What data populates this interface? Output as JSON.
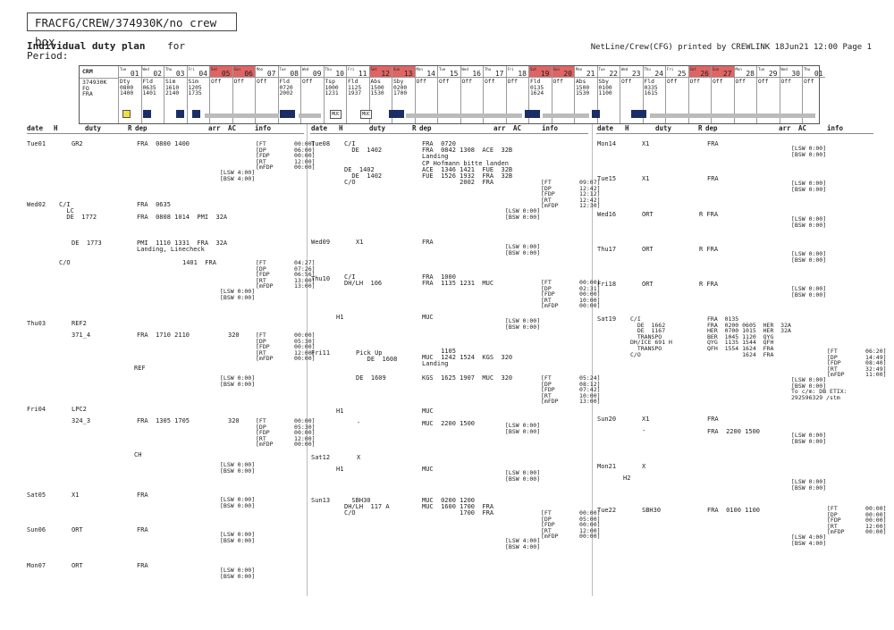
{
  "title_box": "FRACFG/CREW/374930K/no crew box",
  "header": {
    "title": "Individual duty plan",
    "for": "for",
    "period": "Period:",
    "right": "NetLine/Crew(CFG)  printed by CREWLINK  18Jun21 12:00 Page 1"
  },
  "calendar": {
    "crm_label": "CRM",
    "crm_lines": "374930K\nFO\nFRA",
    "days": [
      {
        "dn": "Tue",
        "dd": "01",
        "red": false,
        "body": "Dty\n0800\n1400"
      },
      {
        "dn": "Wed",
        "dd": "02",
        "red": false,
        "body": "Fld\n0635\n1401"
      },
      {
        "dn": "Thu",
        "dd": "03",
        "red": false,
        "body": "Sim\n1610\n2140"
      },
      {
        "dn": "Fri",
        "dd": "04",
        "red": false,
        "body": "Sim\n1205\n1735"
      },
      {
        "dn": "Sat",
        "dd": "05",
        "red": true,
        "body": "Off"
      },
      {
        "dn": "Sun",
        "dd": "06",
        "red": true,
        "body": "Off"
      },
      {
        "dn": "Mon",
        "dd": "07",
        "red": false,
        "body": "Off"
      },
      {
        "dn": "Tue",
        "dd": "08",
        "red": false,
        "body": "Fld\n0720\n2002"
      },
      {
        "dn": "Wed",
        "dd": "09",
        "red": false,
        "body": "Off"
      },
      {
        "dn": "Thu",
        "dd": "10",
        "red": false,
        "body": "Tsp\n1000\n1231"
      },
      {
        "dn": "Fri",
        "dd": "11",
        "red": false,
        "body": "Fld\n1125\n1937"
      },
      {
        "dn": "Sat",
        "dd": "12",
        "red": true,
        "body": "Abs\n1500\n1530"
      },
      {
        "dn": "Sun",
        "dd": "13",
        "red": true,
        "body": "Sby\n0200\n1700"
      },
      {
        "dn": "Mon",
        "dd": "14",
        "red": false,
        "body": "Off"
      },
      {
        "dn": "Tue",
        "dd": "15",
        "red": false,
        "body": "Off"
      },
      {
        "dn": "Wed",
        "dd": "16",
        "red": false,
        "body": "Off"
      },
      {
        "dn": "Thu",
        "dd": "17",
        "red": false,
        "body": "Off"
      },
      {
        "dn": "Fri",
        "dd": "18",
        "red": false,
        "body": "Off"
      },
      {
        "dn": "Sat",
        "dd": "19",
        "red": true,
        "body": "Fld\n0135\n1624"
      },
      {
        "dn": "Sun",
        "dd": "20",
        "red": true,
        "body": "Off"
      },
      {
        "dn": "Mon",
        "dd": "21",
        "red": false,
        "body": "Abs\n1500\n1530"
      },
      {
        "dn": "Tue",
        "dd": "22",
        "red": false,
        "body": "Sby\n0100\n1100"
      },
      {
        "dn": "Wed",
        "dd": "23",
        "red": false,
        "body": "Off"
      },
      {
        "dn": "Thu",
        "dd": "24",
        "red": false,
        "body": "Fld\n0335\n1615"
      },
      {
        "dn": "Fri",
        "dd": "25",
        "red": false,
        "body": "Off"
      },
      {
        "dn": "Sat",
        "dd": "26",
        "red": true,
        "body": "Off"
      },
      {
        "dn": "Sun",
        "dd": "27",
        "red": true,
        "body": "Off"
      },
      {
        "dn": "Mon",
        "dd": "28",
        "red": false,
        "body": "Off"
      },
      {
        "dn": "Tue",
        "dd": "29",
        "red": false,
        "body": "Off"
      },
      {
        "dn": "Wed",
        "dd": "30",
        "red": false,
        "body": "Off"
      },
      {
        "dn": "Thu",
        "dd": "01",
        "red": false,
        "body": "Off"
      }
    ],
    "muc1": "MUC",
    "muc2": "MUC"
  },
  "columns": {
    "h1": [
      "date",
      "H",
      "duty",
      "R",
      "dep",
      "arr",
      "AC",
      "info"
    ],
    "h2": [
      "date",
      "H",
      "duty",
      "R",
      "dep",
      "arr",
      "AC",
      "info"
    ],
    "h3": [
      "date",
      "H",
      "duty",
      "R",
      "dep",
      "arr",
      "AC",
      "info"
    ]
  },
  "col1": {
    "tue01_date": "Tue01",
    "tue01_duty": "GR2",
    "tue01_dep": "FRA  0800 1400",
    "tue01_ft": "[FT        00:00]\n[DP        06:00]\n[FDP       00:00]\n[RT        12:00]\n[mFDP      00:00]",
    "tue01_lsw": "[LSW 4:00]\n[BSW 4:00]",
    "wed02_date": "Wed02",
    "wed02_duty": "C/I\n  LC\n  DE  1772",
    "wed02_dep": "FRA  0635\n\nFRA  0808 1014  PMI  32A",
    "wed02_duty2": "DE  1773",
    "wed02_dep2": "PMI  1110 1331  FRA  32A\nLanding, Linecheck",
    "wed02_co": "C/O",
    "wed02_co_t": "1401  FRA",
    "wed02_ft": "[FT        04:27]\n[DP        07:26]\n[FDP       06:56]\n[RT        13:00]\n[mFDP      13:00]",
    "wed02_lsw": "[LSW 0:00]\n[BSW 0:00]",
    "thu03_date": "Thu03",
    "thu03_duty": "REF2",
    "thu03_371": "371_4",
    "thu03_dep": "FRA  1710 2110",
    "thu03_ac": "320",
    "thu03_ft": "[FT        00:00]\n[DP        05:30]\n[FDP       00:00]\n[RT        12:00]\n[mFDP      00:00]",
    "thu03_ref": "REF",
    "thu03_lsw": "[LSW 0:00]\n[BSW 0:00]",
    "fri04_date": "Fri04",
    "fri04_duty": "LPC2",
    "fri04_324": "324_3",
    "fri04_dep": "FRA  1305 1705",
    "fri04_ac": "320",
    "fri04_ft": "[FT        00:00]\n[DP        05:30]\n[FDP       00:00]\n[RT        12:00]\n[mFDP      00:00]",
    "fri04_ch": "CH",
    "fri04_lsw": "[LSW 0:00]\n[BSW 0:00]",
    "sat05_date": "Sat05",
    "sat05_duty": "X1",
    "sat05_dep": "FRA",
    "sat05_lsw": "[LSW 0:00]\n[BSW 0:00]",
    "sun06_date": "Sun06",
    "sun06_duty": "ORT",
    "sun06_dep": "FRA",
    "sun06_lsw": "[LSW 0:00]\n[BSW 0:00]",
    "mon07_date": "Mon07",
    "mon07_duty": "ORT",
    "mon07_dep": "FRA",
    "mon07_lsw": "[LSW 0:00]\n[BSW 0:00]"
  },
  "col2": {
    "tue08_date": "Tue08",
    "tue08_duty": "C/I\n  DE  1402",
    "tue08_dep": "FRA  0720\nFRA  0842 1308  ACE  32B\nLanding\nCP Hofmann bitte landen\nACE  1346 1421  FUE  32B\nFUE  1526 1932  FRA  32B\n          2002  FRA",
    "tue08_duty2": "DE  1402\n  DE  1402\nC/O",
    "tue08_ft": "[FT        09:07]\n[DP        12:42]\n[FDP       12:12]\n[RT        12:42]\n[mFDP      12:30]",
    "tue08_lsw": "[LSW 0:00]\n[BSW 0:00]",
    "wed09_date": "Wed09",
    "wed09_duty": "X1",
    "wed09_dep": "FRA",
    "wed09_lsw": "[LSW 0:00]\n[BSW 0:00]",
    "thu10_date": "Thu10",
    "thu10_duty": "C/I\nDH/LH  106",
    "thu10_dep": "FRA  1000\nFRA  1135 1231  MUC",
    "thu10_ft": "[FT        00:00]\n[DP        02:31]\n[FDP       00:00]\n[RT        10:00]\n[mFDP      00:00]",
    "thu10_h1": "H1",
    "thu10_muc": "MUC",
    "thu10_lsw": "[LSW 0:00]\n[BSW 0:00]",
    "fri11_date": "Fri11",
    "fri11_duty": "Pick Up\n   DE  1608",
    "fri11_dep": "     1105\nMUC  1242 1524  KGS  320\nLanding",
    "fri11_duty2": "DE  1609",
    "fri11_dep2": "KGS  1625 1907  MUC  320",
    "fri11_ft": "[FT        05:24]\n[DP        08:12]\n[FDP       07:42]\n[RT        10:00]\n[mFDP      13:00]",
    "fri11_h1": "H1",
    "fri11_dash": "-",
    "fri11_muc": "MUC\n\nMUC  2200 1500",
    "fri11_lsw": "[LSW 0:00]\n[BSW 0:00]",
    "sat12_date": "Sat12",
    "sat12_x": "X",
    "sat12_h1": "H1",
    "sat12_muc": "MUC",
    "sat12_lsw": "[LSW 0:00]\n[BSW 0:00]",
    "sun13_date": "Sun13",
    "sun13_duty": "  SBH30\nDH/LH  117 A\nC/O",
    "sun13_dep": "MUC  0200 1200\nMUC  1600 1700  FRA\n          1700  FRA",
    "sun13_ft": "[FT        00:00]\n[DP        05:00]\n[FDP       00:00]\n[RT        12:00]\n[mFDP      00:00]",
    "sun13_lsw": "[LSW 4:00]\n[BSW 4:00]"
  },
  "col3": {
    "mon14_date": "Mon14",
    "mon14_duty": "X1",
    "mon14_dep": "FRA",
    "mon14_lsw": "[LSW 0:00]\n[BSW 0:00]",
    "tue15_date": "Tue15",
    "tue15_duty": "X1",
    "tue15_dep": "FRA",
    "tue15_lsw": "[LSW 0:00]\n[BSW 0:00]",
    "wed16_date": "Wed16",
    "wed16_duty": "ORT",
    "wed16_dep": "R FRA",
    "wed16_lsw": "[LSW 0:00]\n[BSW 0:00]",
    "thu17_date": "Thu17",
    "thu17_duty": "ORT",
    "thu17_dep": "R FRA",
    "thu17_lsw": "[LSW 0:00]\n[BSW 0:00]",
    "fri18_date": "Fri18",
    "fri18_duty": "ORT",
    "fri18_dep": "R FRA",
    "fri18_lsw": "[LSW 0:00]\n[BSW 0:00]",
    "sat19_date": "Sat19",
    "sat19_duty": "C/I\n  DE  1662\n  DE  1167\n  TRANSPO\nDH/ICE 691 H\n  TRANSPO\nC/O",
    "sat19_dep": "FRA  0135\nFRA  0200 0605  HER  32A\nHER  0700 1015  HER  32A\nBER  1045 1120  QYG\nQYG  1135 1544  QFH\nQFH  1554 1624  FRA\n          1624  FRA",
    "sat19_ft": "[FT        06:20]\n[DP        14:49]\n[FDP       08:40]\n[RT        32:49]\n[mFDP      11:00]",
    "sat19_lsw": "[LSW 0:00]\n[BSW 0:00]\nTo c/m: DB ETIX:\n292596329 /stm",
    "sun20_date": "Sun20",
    "sun20_duty": "X1",
    "sun20_dash": "-",
    "sun20_dep": "FRA\n\nFRA  2200 1500",
    "sun20_lsw": "[LSW 0:00]\n[BSW 0:00]",
    "mon21_date": "Mon21",
    "mon21_x": "X",
    "mon21_h2": "H2",
    "mon21_lsw": "[LSW 0:00]\n[BSW 0:00]",
    "tue22_date": "Tue22",
    "tue22_duty": "SBH30",
    "tue22_dep": "FRA  0100 1100",
    "tue22_ft": "[FT        00:00]\n[DP        00:00]\n[FDP       00:00]\n[RT        12:00]\n[mFDP      00:00]",
    "tue22_lsw": "[LSW 4:00]\n[BSW 4:00]"
  }
}
